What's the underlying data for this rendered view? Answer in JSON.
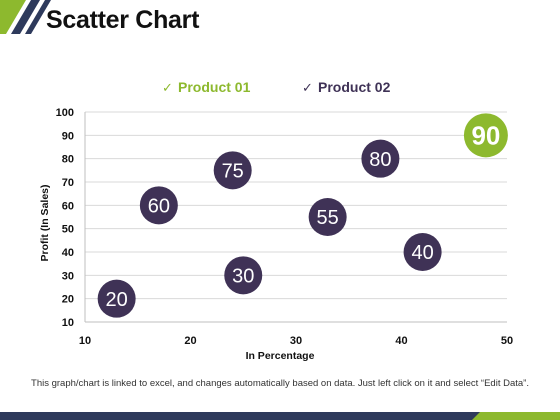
{
  "slide": {
    "title": "Scatter Chart",
    "footnote": "This graph/chart is linked to excel, and changes automatically based on data. Just left click on it and select “Edit Data”."
  },
  "colors": {
    "product01": "#8db92e",
    "product02": "#3f3256",
    "accent_dark": "#2e3a5c",
    "grid": "#d9d9d9"
  },
  "chart_data": {
    "type": "scatter",
    "title": "",
    "xlabel": "In Percentage",
    "ylabel": "Profit (In Sales)",
    "xlim": [
      10,
      50
    ],
    "ylim": [
      10,
      100
    ],
    "xticks": [
      10,
      20,
      30,
      40,
      50
    ],
    "yticks": [
      10,
      20,
      30,
      40,
      50,
      60,
      70,
      80,
      90,
      100
    ],
    "grid": true,
    "legend_position": "top",
    "legend": [
      {
        "name": "Product 01",
        "marker": "✓"
      },
      {
        "name": "Product 02",
        "marker": "✓"
      }
    ],
    "series": [
      {
        "name": "Product 01",
        "points": [
          {
            "x": 48,
            "y": 90,
            "label": "90"
          }
        ]
      },
      {
        "name": "Product 02",
        "points": [
          {
            "x": 13,
            "y": 20,
            "label": "20"
          },
          {
            "x": 17,
            "y": 60,
            "label": "60"
          },
          {
            "x": 24,
            "y": 75,
            "label": "75"
          },
          {
            "x": 25,
            "y": 30,
            "label": "30"
          },
          {
            "x": 33,
            "y": 55,
            "label": "55"
          },
          {
            "x": 38,
            "y": 80,
            "label": "80"
          },
          {
            "x": 42,
            "y": 40,
            "label": "40"
          }
        ]
      }
    ]
  }
}
